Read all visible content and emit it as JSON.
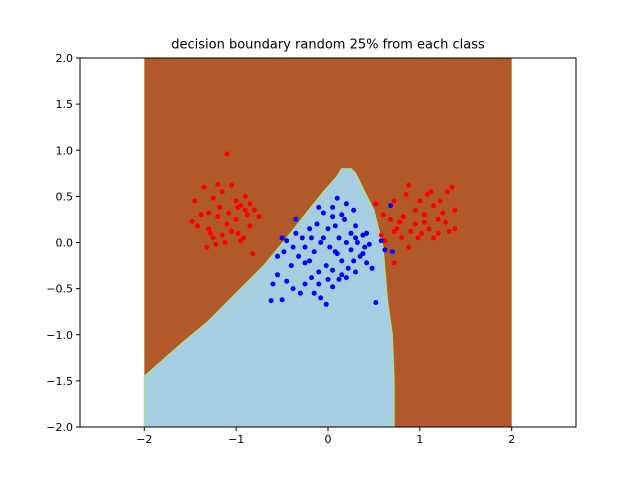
{
  "chart_data": {
    "type": "scatter",
    "title": "decision boundary random 25% from each class",
    "xlabel": "",
    "ylabel": "",
    "xlim": [
      -2.7,
      2.7
    ],
    "ylim": [
      -2.0,
      2.0
    ],
    "x_ticks": [
      -2,
      -1,
      0,
      1,
      2
    ],
    "y_ticks": [
      -2.0,
      -1.5,
      -1.0,
      -0.5,
      0.0,
      0.5,
      1.0,
      1.5,
      2.0
    ],
    "x_tick_labels": [
      "−2",
      "−1",
      "0",
      "1",
      "2"
    ],
    "y_tick_labels": [
      "−2.0",
      "−1.5",
      "−1.0",
      "−0.5",
      "0.0",
      "0.5",
      "1.0",
      "1.5",
      "2.0"
    ],
    "grid": false,
    "decision_regions": {
      "extent_x": [
        -2.0,
        2.0
      ],
      "extent_y": [
        -2.0,
        2.0
      ],
      "outer_class_color": "#b15928",
      "inner_class_color": "#a6cee3",
      "boundary_color": "#b2df8a",
      "inner_region_polygon": [
        [
          -2.0,
          -2.0
        ],
        [
          -2.0,
          -1.45
        ],
        [
          -1.6,
          -1.1
        ],
        [
          -1.3,
          -0.85
        ],
        [
          -1.0,
          -0.55
        ],
        [
          -0.7,
          -0.25
        ],
        [
          -0.45,
          0.05
        ],
        [
          -0.25,
          0.3
        ],
        [
          -0.05,
          0.55
        ],
        [
          0.1,
          0.72
        ],
        [
          0.15,
          0.8
        ],
        [
          0.25,
          0.8
        ],
        [
          0.3,
          0.75
        ],
        [
          0.4,
          0.55
        ],
        [
          0.5,
          0.35
        ],
        [
          0.55,
          0.15
        ],
        [
          0.6,
          -0.05
        ],
        [
          0.62,
          -0.3
        ],
        [
          0.65,
          -0.65
        ],
        [
          0.7,
          -1.0
        ],
        [
          0.72,
          -1.5
        ],
        [
          0.72,
          -2.0
        ]
      ]
    },
    "series": [
      {
        "color": "#ff0000",
        "points": [
          [
            -1.1,
            0.96
          ],
          [
            -1.45,
            0.45
          ],
          [
            -1.35,
            0.6
          ],
          [
            -1.25,
            0.48
          ],
          [
            -1.2,
            0.63
          ],
          [
            -1.15,
            0.55
          ],
          [
            -1.05,
            0.62
          ],
          [
            -1.0,
            0.45
          ],
          [
            -0.95,
            0.4
          ],
          [
            -0.9,
            0.5
          ],
          [
            -0.85,
            0.42
          ],
          [
            -0.88,
            0.3
          ],
          [
            -0.8,
            0.35
          ],
          [
            -0.75,
            0.28
          ],
          [
            -1.48,
            0.23
          ],
          [
            -1.42,
            0.18
          ],
          [
            -1.3,
            0.15
          ],
          [
            -1.25,
            0.05
          ],
          [
            -1.22,
            -0.02
          ],
          [
            -1.15,
            0.08
          ],
          [
            -1.1,
            0.2
          ],
          [
            -1.05,
            0.12
          ],
          [
            -1.0,
            0.25
          ],
          [
            -0.98,
            0.1
          ],
          [
            -0.92,
            0.05
          ],
          [
            -0.85,
            0.18
          ],
          [
            -0.82,
            -0.12
          ],
          [
            -1.3,
            0.32
          ],
          [
            -1.38,
            0.3
          ],
          [
            -1.2,
            0.28
          ],
          [
            -1.08,
            0.32
          ],
          [
            -0.95,
            0.02
          ],
          [
            -1.12,
            0.0
          ],
          [
            -1.32,
            -0.05
          ],
          [
            -0.9,
            0.35
          ],
          [
            -0.98,
            0.38
          ],
          [
            -1.18,
            0.38
          ],
          [
            -1.28,
            0.1
          ],
          [
            0.52,
            0.42
          ],
          [
            0.6,
            0.3
          ],
          [
            0.72,
            0.45
          ],
          [
            0.85,
            0.52
          ],
          [
            0.88,
            0.62
          ],
          [
            0.95,
            0.35
          ],
          [
            0.82,
            0.28
          ],
          [
            0.78,
            0.22
          ],
          [
            0.75,
            0.15
          ],
          [
            0.9,
            0.12
          ],
          [
            0.95,
            0.2
          ],
          [
            1.05,
            0.3
          ],
          [
            1.0,
            0.45
          ],
          [
            1.08,
            0.52
          ],
          [
            1.12,
            0.55
          ],
          [
            1.15,
            0.4
          ],
          [
            1.2,
            0.25
          ],
          [
            1.25,
            0.32
          ],
          [
            1.3,
            0.55
          ],
          [
            1.35,
            0.6
          ],
          [
            1.38,
            0.35
          ],
          [
            1.32,
            0.12
          ],
          [
            1.28,
            0.22
          ],
          [
            1.2,
            0.1
          ],
          [
            1.15,
            0.05
          ],
          [
            1.1,
            0.15
          ],
          [
            1.02,
            0.1
          ],
          [
            0.98,
            0.05
          ],
          [
            0.88,
            -0.05
          ],
          [
            0.8,
            0.05
          ],
          [
            0.72,
            0.12
          ],
          [
            0.68,
            0.25
          ],
          [
            0.58,
            0.08
          ],
          [
            0.62,
            0.02
          ],
          [
            0.72,
            -0.22
          ],
          [
            1.05,
            0.22
          ],
          [
            1.22,
            0.45
          ],
          [
            1.38,
            0.15
          ]
        ]
      },
      {
        "color": "#0000ff",
        "points": [
          [
            0.1,
            0.48
          ],
          [
            0.2,
            0.42
          ],
          [
            0.15,
            0.3
          ],
          [
            0.05,
            0.28
          ],
          [
            -0.05,
            0.32
          ],
          [
            -0.12,
            0.2
          ],
          [
            -0.2,
            0.15
          ],
          [
            -0.28,
            0.05
          ],
          [
            -0.35,
            0.1
          ],
          [
            -0.45,
            0.02
          ],
          [
            -0.5,
            0.05
          ],
          [
            -0.38,
            -0.05
          ],
          [
            -0.32,
            -0.15
          ],
          [
            -0.25,
            -0.22
          ],
          [
            -0.15,
            -0.1
          ],
          [
            -0.05,
            0.05
          ],
          [
            0.0,
            0.15
          ],
          [
            0.08,
            0.18
          ],
          [
            0.12,
            0.05
          ],
          [
            0.2,
            0.0
          ],
          [
            0.25,
            0.1
          ],
          [
            0.3,
            0.18
          ],
          [
            0.38,
            0.08
          ],
          [
            0.4,
            -0.05
          ],
          [
            0.35,
            -0.15
          ],
          [
            0.28,
            -0.2
          ],
          [
            0.22,
            -0.28
          ],
          [
            0.15,
            -0.35
          ],
          [
            0.05,
            -0.3
          ],
          [
            -0.02,
            -0.25
          ],
          [
            -0.1,
            -0.32
          ],
          [
            -0.18,
            -0.38
          ],
          [
            -0.25,
            -0.45
          ],
          [
            -0.3,
            -0.55
          ],
          [
            -0.38,
            -0.5
          ],
          [
            -0.45,
            -0.42
          ],
          [
            -0.55,
            -0.35
          ],
          [
            -0.6,
            -0.45
          ],
          [
            -0.62,
            -0.63
          ],
          [
            -0.5,
            -0.62
          ],
          [
            -0.15,
            -0.55
          ],
          [
            -0.08,
            -0.6
          ],
          [
            -0.02,
            -0.67
          ],
          [
            0.05,
            -0.48
          ],
          [
            0.12,
            -0.4
          ],
          [
            0.2,
            -0.38
          ],
          [
            0.3,
            -0.32
          ],
          [
            0.42,
            -0.22
          ],
          [
            0.48,
            -0.28
          ],
          [
            0.52,
            -0.65
          ],
          [
            0.42,
            0.1
          ],
          [
            0.32,
            0.0
          ],
          [
            0.25,
            -0.08
          ],
          [
            0.1,
            -0.12
          ],
          [
            0.02,
            -0.05
          ],
          [
            -0.08,
            0.0
          ],
          [
            -0.18,
            0.05
          ],
          [
            -0.25,
            -0.05
          ],
          [
            -0.4,
            -0.25
          ],
          [
            -0.55,
            -0.15
          ],
          [
            -0.35,
            0.25
          ],
          [
            -0.1,
            0.38
          ],
          [
            0.05,
            0.38
          ],
          [
            0.18,
            0.25
          ],
          [
            0.3,
            0.05
          ],
          [
            0.38,
            -0.12
          ],
          [
            0.45,
            -0.02
          ],
          [
            -0.2,
            -0.2
          ],
          [
            0.0,
            -0.4
          ],
          [
            0.15,
            -0.2
          ],
          [
            0.58,
            0.02
          ],
          [
            0.68,
            0.4
          ],
          [
            0.62,
            -0.08
          ],
          [
            0.7,
            -0.1
          ],
          [
            0.28,
            0.35
          ],
          [
            -0.48,
            -0.1
          ],
          [
            -0.1,
            -0.45
          ],
          [
            0.08,
            -0.1
          ]
        ]
      }
    ]
  }
}
